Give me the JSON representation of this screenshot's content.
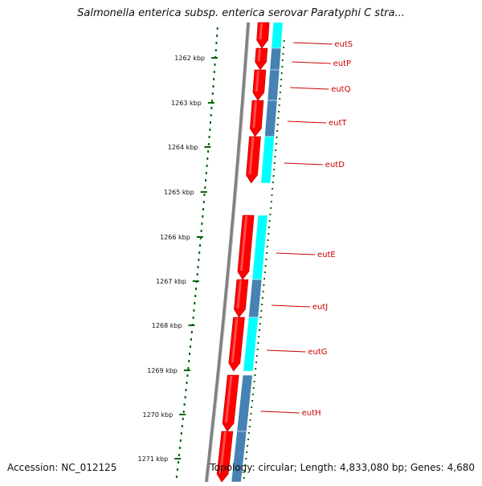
{
  "map": {
    "title": "Salmonella enterica subsp. enterica serovar Paratyphi C stra...",
    "accession": "Accession: NC_012125",
    "summary": "Topology: circular; Length: 4,833,080 bp; Genes: 4,680"
  },
  "scale": {
    "unit": "kbp",
    "ticks": [
      "1262 kbp",
      "1263 kbp",
      "1264 kbp",
      "1265 kbp",
      "1266 kbp",
      "1267 kbp",
      "1268 kbp",
      "1269 kbp",
      "1270 kbp",
      "1271 kbp"
    ]
  },
  "genes": [
    {
      "name": "eutS"
    },
    {
      "name": "eutP"
    },
    {
      "name": "eutQ"
    },
    {
      "name": "eutT"
    },
    {
      "name": "eutD"
    },
    {
      "name": "eutE"
    },
    {
      "name": "eutJ"
    },
    {
      "name": "eutG"
    },
    {
      "name": "eutH"
    }
  ],
  "colors": {
    "cds": "#ff0000",
    "cog_light": "#00ffff",
    "cog_dark": "#4682b4",
    "backbone": "#808080",
    "ticks": "#006400",
    "labels": "#cc0000"
  }
}
